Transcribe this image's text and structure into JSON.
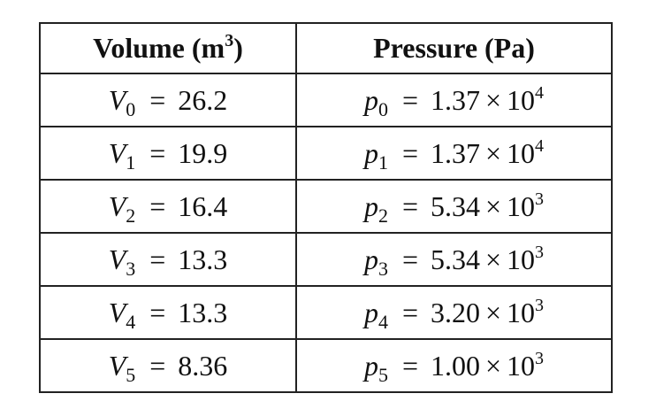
{
  "table": {
    "header": [
      {
        "text": "Volume (m",
        "superscript": "3",
        "close": ")"
      },
      {
        "text": "Pressure (Pa)"
      }
    ],
    "rows": [
      [
        {
          "symbol": "V",
          "subscript": "0",
          "relation": "=",
          "value": "26.2"
        },
        {
          "symbol": "p",
          "subscript": "0",
          "relation": "=",
          "mantissa": "1.37",
          "times": "×",
          "base": "10",
          "exponent": "4"
        }
      ],
      [
        {
          "symbol": "V",
          "subscript": "1",
          "relation": "=",
          "value": "19.9"
        },
        {
          "symbol": "p",
          "subscript": "1",
          "relation": "=",
          "mantissa": "1.37",
          "times": "×",
          "base": "10",
          "exponent": "4"
        }
      ],
      [
        {
          "symbol": "V",
          "subscript": "2",
          "relation": "=",
          "value": "16.4"
        },
        {
          "symbol": "p",
          "subscript": "2",
          "relation": "=",
          "mantissa": "5.34",
          "times": "×",
          "base": "10",
          "exponent": "3"
        }
      ],
      [
        {
          "symbol": "V",
          "subscript": "3",
          "relation": "=",
          "value": "13.3"
        },
        {
          "symbol": "p",
          "subscript": "3",
          "relation": "=",
          "mantissa": "5.34",
          "times": "×",
          "base": "10",
          "exponent": "3"
        }
      ],
      [
        {
          "symbol": "V",
          "subscript": "4",
          "relation": "=",
          "value": "13.3"
        },
        {
          "symbol": "p",
          "subscript": "4",
          "relation": "=",
          "mantissa": "3.20",
          "times": "×",
          "base": "10",
          "exponent": "3"
        }
      ],
      [
        {
          "symbol": "V",
          "subscript": "5",
          "relation": "=",
          "value": "8.36"
        },
        {
          "symbol": "p",
          "subscript": "5",
          "relation": "=",
          "mantissa": "1.00",
          "times": "×",
          "base": "10",
          "exponent": "3"
        }
      ]
    ]
  }
}
